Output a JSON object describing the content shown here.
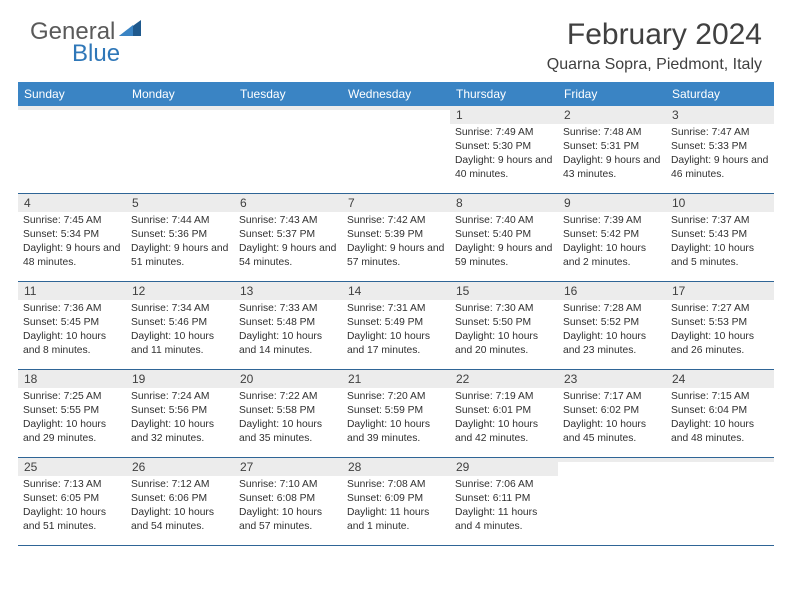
{
  "logo": {
    "word1": "General",
    "word2": "Blue"
  },
  "title": "February 2024",
  "location": "Quarna Sopra, Piedmont, Italy",
  "colors": {
    "header_bar": "#3a84c4",
    "row_divider": "#2f6596",
    "daynum_bg": "#ececec",
    "logo_gray": "#5a5a5a",
    "logo_blue": "#2f77b8",
    "text": "#404040"
  },
  "weekdays": [
    "Sunday",
    "Monday",
    "Tuesday",
    "Wednesday",
    "Thursday",
    "Friday",
    "Saturday"
  ],
  "weeks": [
    [
      null,
      null,
      null,
      null,
      {
        "n": "1",
        "sr": "7:49 AM",
        "ss": "5:30 PM",
        "dl": "9 hours and 40 minutes."
      },
      {
        "n": "2",
        "sr": "7:48 AM",
        "ss": "5:31 PM",
        "dl": "9 hours and 43 minutes."
      },
      {
        "n": "3",
        "sr": "7:47 AM",
        "ss": "5:33 PM",
        "dl": "9 hours and 46 minutes."
      }
    ],
    [
      {
        "n": "4",
        "sr": "7:45 AM",
        "ss": "5:34 PM",
        "dl": "9 hours and 48 minutes."
      },
      {
        "n": "5",
        "sr": "7:44 AM",
        "ss": "5:36 PM",
        "dl": "9 hours and 51 minutes."
      },
      {
        "n": "6",
        "sr": "7:43 AM",
        "ss": "5:37 PM",
        "dl": "9 hours and 54 minutes."
      },
      {
        "n": "7",
        "sr": "7:42 AM",
        "ss": "5:39 PM",
        "dl": "9 hours and 57 minutes."
      },
      {
        "n": "8",
        "sr": "7:40 AM",
        "ss": "5:40 PM",
        "dl": "9 hours and 59 minutes."
      },
      {
        "n": "9",
        "sr": "7:39 AM",
        "ss": "5:42 PM",
        "dl": "10 hours and 2 minutes."
      },
      {
        "n": "10",
        "sr": "7:37 AM",
        "ss": "5:43 PM",
        "dl": "10 hours and 5 minutes."
      }
    ],
    [
      {
        "n": "11",
        "sr": "7:36 AM",
        "ss": "5:45 PM",
        "dl": "10 hours and 8 minutes."
      },
      {
        "n": "12",
        "sr": "7:34 AM",
        "ss": "5:46 PM",
        "dl": "10 hours and 11 minutes."
      },
      {
        "n": "13",
        "sr": "7:33 AM",
        "ss": "5:48 PM",
        "dl": "10 hours and 14 minutes."
      },
      {
        "n": "14",
        "sr": "7:31 AM",
        "ss": "5:49 PM",
        "dl": "10 hours and 17 minutes."
      },
      {
        "n": "15",
        "sr": "7:30 AM",
        "ss": "5:50 PM",
        "dl": "10 hours and 20 minutes."
      },
      {
        "n": "16",
        "sr": "7:28 AM",
        "ss": "5:52 PM",
        "dl": "10 hours and 23 minutes."
      },
      {
        "n": "17",
        "sr": "7:27 AM",
        "ss": "5:53 PM",
        "dl": "10 hours and 26 minutes."
      }
    ],
    [
      {
        "n": "18",
        "sr": "7:25 AM",
        "ss": "5:55 PM",
        "dl": "10 hours and 29 minutes."
      },
      {
        "n": "19",
        "sr": "7:24 AM",
        "ss": "5:56 PM",
        "dl": "10 hours and 32 minutes."
      },
      {
        "n": "20",
        "sr": "7:22 AM",
        "ss": "5:58 PM",
        "dl": "10 hours and 35 minutes."
      },
      {
        "n": "21",
        "sr": "7:20 AM",
        "ss": "5:59 PM",
        "dl": "10 hours and 39 minutes."
      },
      {
        "n": "22",
        "sr": "7:19 AM",
        "ss": "6:01 PM",
        "dl": "10 hours and 42 minutes."
      },
      {
        "n": "23",
        "sr": "7:17 AM",
        "ss": "6:02 PM",
        "dl": "10 hours and 45 minutes."
      },
      {
        "n": "24",
        "sr": "7:15 AM",
        "ss": "6:04 PM",
        "dl": "10 hours and 48 minutes."
      }
    ],
    [
      {
        "n": "25",
        "sr": "7:13 AM",
        "ss": "6:05 PM",
        "dl": "10 hours and 51 minutes."
      },
      {
        "n": "26",
        "sr": "7:12 AM",
        "ss": "6:06 PM",
        "dl": "10 hours and 54 minutes."
      },
      {
        "n": "27",
        "sr": "7:10 AM",
        "ss": "6:08 PM",
        "dl": "10 hours and 57 minutes."
      },
      {
        "n": "28",
        "sr": "7:08 AM",
        "ss": "6:09 PM",
        "dl": "11 hours and 1 minute."
      },
      {
        "n": "29",
        "sr": "7:06 AM",
        "ss": "6:11 PM",
        "dl": "11 hours and 4 minutes."
      },
      null,
      null
    ]
  ],
  "labels": {
    "sunrise": "Sunrise:",
    "sunset": "Sunset:",
    "daylight": "Daylight:"
  }
}
